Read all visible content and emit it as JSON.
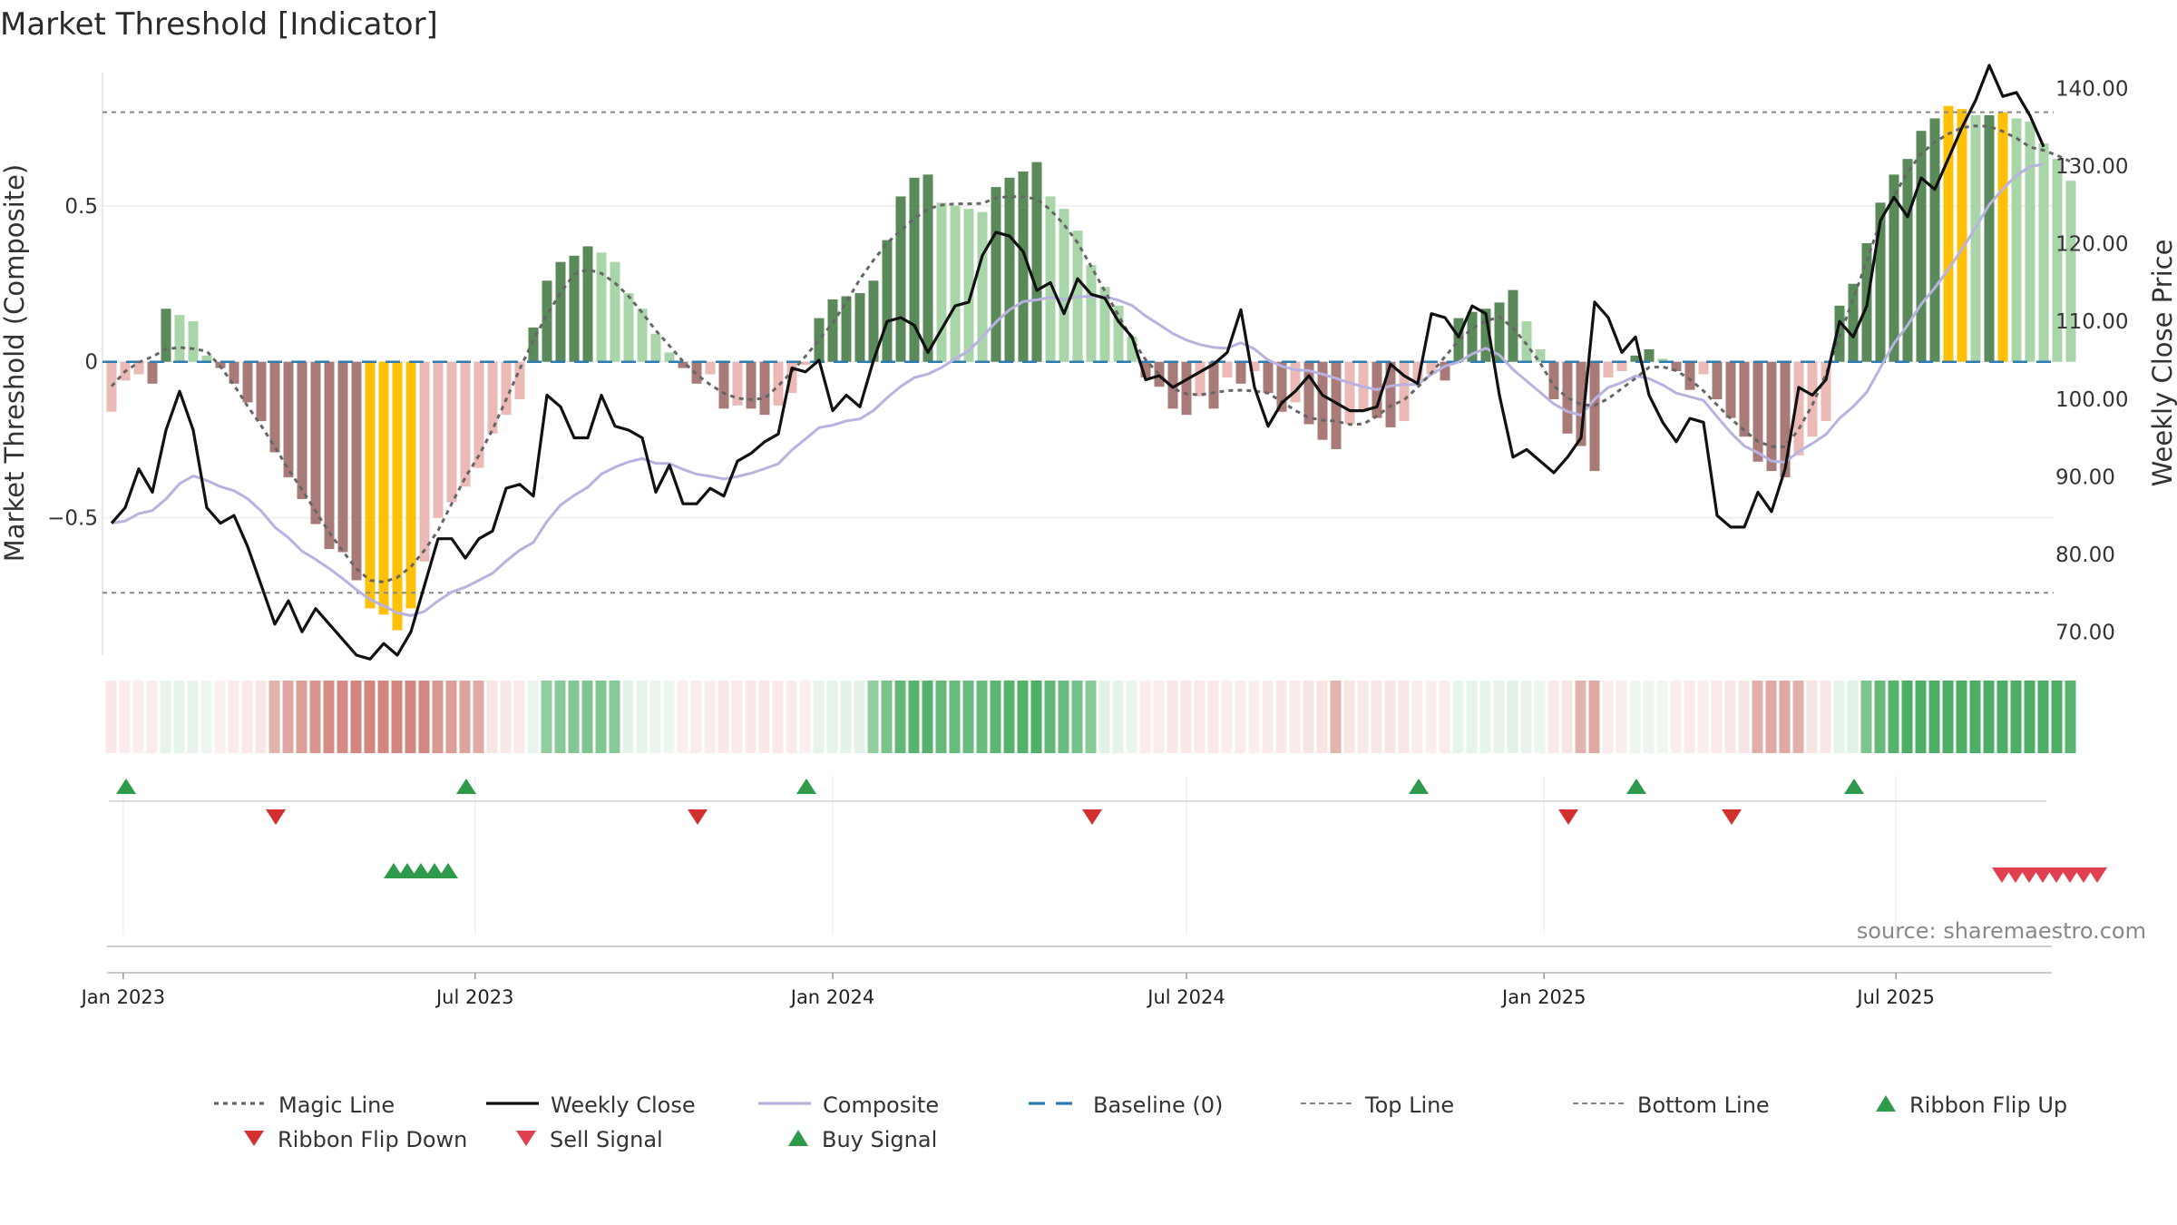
{
  "chart_data": {
    "type": "bar",
    "title": "Market Threshold [Indicator]",
    "ylabel_left": "Market Threshold (Composite)",
    "ylabel_right": "Weekly Close Price",
    "left_yticks": [
      {
        "value": 0.5,
        "label": "0.5"
      },
      {
        "value": 0,
        "label": "0"
      },
      {
        "value": -0.5,
        "label": "−0.5"
      }
    ],
    "right_yticks": [
      {
        "value": 140,
        "label": "140.00"
      },
      {
        "value": 130,
        "label": "130.00"
      },
      {
        "value": 120,
        "label": "120.00"
      },
      {
        "value": 110,
        "label": "110.00"
      },
      {
        "value": 100,
        "label": "100.00"
      },
      {
        "value": 90,
        "label": "90.00"
      },
      {
        "value": 80,
        "label": "80.00"
      },
      {
        "value": 70,
        "label": "70.00"
      }
    ],
    "ylim_left": [
      -0.94,
      0.95
    ],
    "ylim_right": [
      67,
      143
    ],
    "top_line": 0.8,
    "bottom_line": -0.74,
    "baseline": 0,
    "x_start": "2022-12-26",
    "x_ticks": [
      {
        "date": "2023-01-01",
        "label": "Jan 2023"
      },
      {
        "date": "2023-07-01",
        "label": "Jul 2023"
      },
      {
        "date": "2024-01-01",
        "label": "Jan 2024"
      },
      {
        "date": "2024-07-01",
        "label": "Jul 2024"
      },
      {
        "date": "2025-01-01",
        "label": "Jan 2025"
      },
      {
        "date": "2025-07-01",
        "label": "Jul 2025"
      }
    ],
    "composite_bars": [
      -0.16,
      -0.06,
      -0.04,
      -0.07,
      0.17,
      0.15,
      0.13,
      0.02,
      -0.02,
      -0.07,
      -0.13,
      -0.19,
      -0.29,
      -0.37,
      -0.44,
      -0.52,
      -0.6,
      -0.61,
      -0.7,
      -0.79,
      -0.81,
      -0.86,
      -0.79,
      -0.64,
      -0.5,
      -0.45,
      -0.4,
      -0.34,
      -0.23,
      -0.17,
      -0.12,
      0.11,
      0.26,
      0.32,
      0.34,
      0.37,
      0.35,
      0.32,
      0.22,
      0.17,
      0.09,
      0.03,
      -0.02,
      -0.07,
      -0.04,
      -0.15,
      -0.14,
      -0.15,
      -0.17,
      -0.14,
      -0.1,
      -0.01,
      0.14,
      0.2,
      0.21,
      0.22,
      0.26,
      0.39,
      0.53,
      0.59,
      0.6,
      0.51,
      0.5,
      0.49,
      0.48,
      0.56,
      0.59,
      0.61,
      0.64,
      0.53,
      0.49,
      0.42,
      0.31,
      0.24,
      0.18,
      0.08,
      -0.05,
      -0.08,
      -0.15,
      -0.17,
      -0.11,
      -0.15,
      -0.05,
      -0.07,
      -0.03,
      -0.1,
      -0.16,
      -0.13,
      -0.2,
      -0.25,
      -0.28,
      -0.2,
      -0.16,
      -0.18,
      -0.21,
      -0.19,
      -0.06,
      -0.04,
      -0.06,
      0.14,
      0.16,
      0.17,
      0.19,
      0.23,
      0.13,
      0.04,
      -0.12,
      -0.23,
      -0.27,
      -0.35,
      -0.05,
      -0.03,
      0.02,
      0.04,
      0.01,
      -0.03,
      -0.09,
      -0.04,
      -0.12,
      -0.18,
      -0.24,
      -0.32,
      -0.35,
      -0.37,
      -0.3,
      -0.24,
      -0.19,
      0.18,
      0.25,
      0.38,
      0.51,
      0.6,
      0.65,
      0.74,
      0.78,
      0.82,
      0.81,
      0.79,
      0.79,
      0.8,
      0.78,
      0.77,
      0.7,
      0.65,
      0.58
    ],
    "bar_color_key": {
      "dark_green": "#5a8a5a",
      "light_green": "#a9d6a9",
      "dark_red": "#a87b78",
      "light_red": "#ebb9b6",
      "threshold_extreme": "#ffc107"
    },
    "ribbon_colors": {
      "strong_green": "#4caf64",
      "light_green": "#cfe9d5",
      "strong_red": "#d2867e",
      "light_red": "#f2d2d0"
    },
    "series": [
      {
        "name": "Magic Line",
        "color": "#666666"
      },
      {
        "name": "Weekly Close",
        "color": "#111111"
      },
      {
        "name": "Composite",
        "color": "#b8b2e0"
      }
    ],
    "weekly_close": [
      84.0,
      86.0,
      91.0,
      88.0,
      96.0,
      101.0,
      96.0,
      86.0,
      84.0,
      85.0,
      81.0,
      76.0,
      71.0,
      74.0,
      70.0,
      73.0,
      71.0,
      69.0,
      67.0,
      66.5,
      68.5,
      67.0,
      70.0,
      76.0,
      82.0,
      82.0,
      79.5,
      82.0,
      83.0,
      88.5,
      89.0,
      87.5,
      100.5,
      99.0,
      95.0,
      95.0,
      100.5,
      96.5,
      96.0,
      95.0,
      88.0,
      91.5,
      86.5,
      86.5,
      88.5,
      87.5,
      92.0,
      93.0,
      94.5,
      95.5,
      104.0,
      103.5,
      105.0,
      98.5,
      100.5,
      99.0,
      105.0,
      110.0,
      110.5,
      109.5,
      106.0,
      109.0,
      112.0,
      112.5,
      118.5,
      121.5,
      121.0,
      119.0,
      114.0,
      115.0,
      111.0,
      115.5,
      113.5,
      113.0,
      110.0,
      108.0,
      102.5,
      103.0,
      101.5,
      102.5,
      103.5,
      104.5,
      106.0,
      111.5,
      101.5,
      96.5,
      99.5,
      101.0,
      103.0,
      100.5,
      99.5,
      98.5,
      98.5,
      99.0,
      104.5,
      103.0,
      102.0,
      111.0,
      110.5,
      108.0,
      112.0,
      111.0,
      100.5,
      92.5,
      93.5,
      92.0,
      90.5,
      92.5,
      95.0,
      112.5,
      110.5,
      106.0,
      108.0,
      100.5,
      97.0,
      94.5,
      97.5,
      97.0,
      85.0,
      83.5,
      83.5,
      88.0,
      85.5,
      91.0,
      101.5,
      100.5,
      102.5,
      110.0,
      108.0,
      112.0,
      123.0,
      126.0,
      123.5,
      128.5,
      127.0,
      131.0,
      135.0,
      138.5,
      143.0,
      139.0,
      139.5,
      136.5,
      132.5
    ],
    "buy_signal_offsets": [
      21,
      22,
      23,
      24,
      25
    ],
    "sell_signal_offsets": [
      139,
      140,
      141,
      142,
      143,
      144,
      145,
      146
    ],
    "ribbon_flip_up_offsets": [
      1,
      26,
      51,
      96,
      112,
      128
    ],
    "ribbon_flip_down_offsets": [
      12,
      43,
      72,
      107,
      119
    ],
    "legend": [
      {
        "label": "Magic Line",
        "symbol": "dotted",
        "color": "#666666"
      },
      {
        "label": "Weekly Close",
        "symbol": "solid",
        "color": "#111111"
      },
      {
        "label": "Composite",
        "symbol": "solid",
        "color": "#b8b2e0"
      },
      {
        "label": "Baseline (0)",
        "symbol": "dashed",
        "color": "#2e7bb0"
      },
      {
        "label": "Top Line",
        "symbol": "dashed-thin",
        "color": "#888888"
      },
      {
        "label": "Bottom Line",
        "symbol": "dashed-thin",
        "color": "#888888"
      },
      {
        "label": "Ribbon Flip Up",
        "symbol": "triangle-up",
        "color": "#2e9b4a"
      },
      {
        "label": "Ribbon Flip Down",
        "symbol": "triangle-down",
        "color": "#d32f2f"
      },
      {
        "label": "Sell Signal",
        "symbol": "triangle-down",
        "color": "#e04050"
      },
      {
        "label": "Buy Signal",
        "symbol": "triangle-up",
        "color": "#2e9b4a"
      }
    ],
    "source": "source: sharemaestro.com",
    "grid": true,
    "legend_placement": "bottom"
  }
}
